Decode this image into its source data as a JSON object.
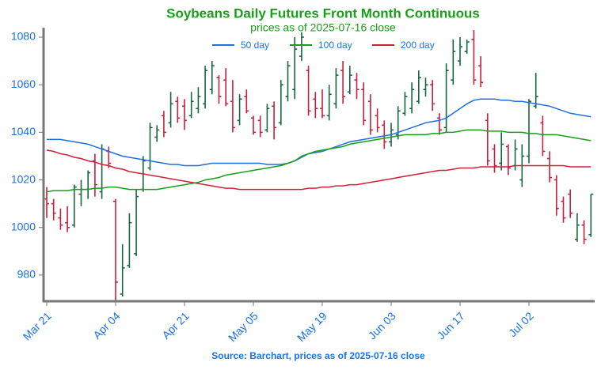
{
  "chart_data": {
    "type": "ohlc",
    "title": "Soybeans Daily Futures Front Month Continuous",
    "subtitle": "prices as of 2025-07-16 close",
    "source": "Source: Barchart, prices as of 2025-07-16 close",
    "categories": [
      "Mar 21",
      null,
      null,
      null,
      null,
      null,
      null,
      null,
      null,
      null,
      "Apr 04",
      null,
      null,
      null,
      null,
      null,
      null,
      null,
      null,
      null,
      "Apr 21",
      null,
      null,
      null,
      null,
      null,
      null,
      null,
      null,
      null,
      "May 05",
      null,
      null,
      null,
      null,
      null,
      null,
      null,
      null,
      null,
      "May 19",
      null,
      null,
      null,
      null,
      null,
      null,
      null,
      null,
      null,
      "Jun 03",
      null,
      null,
      null,
      null,
      null,
      null,
      null,
      null,
      null,
      "Jun 17",
      null,
      null,
      null,
      null,
      null,
      null,
      null,
      null,
      null,
      "Jul 02",
      null,
      null,
      null,
      null,
      null,
      null,
      null,
      null,
      null
    ],
    "open": [
      1012,
      1010,
      1004,
      1002,
      1001,
      1014,
      1016,
      1028,
      1015,
      1032,
      1011,
      972,
      984,
      989,
      1016,
      1025,
      1038,
      1047,
      1044,
      1053,
      1051,
      1047,
      1050,
      1052,
      1058,
      1063,
      1062,
      1053,
      1045,
      1055,
      1046,
      1045,
      1041,
      1051,
      1044,
      1055,
      1058,
      1072,
      1066,
      1054,
      1050,
      1047,
      1052,
      1066,
      1057,
      1062,
      1058,
      1053,
      1047,
      1043,
      1036,
      1039,
      1048,
      1050,
      1053,
      1058,
      1060,
      1046,
      1042,
      1062,
      1070,
      1074,
      1079,
      1068,
      1045,
      1033,
      1027,
      1034,
      1026,
      1020,
      1030,
      1051,
      1044,
      1029,
      1020,
      1011,
      1014,
      995,
      1001,
      997
    ],
    "high": [
      1017,
      1012,
      1008,
      1009,
      1018,
      1020,
      1024,
      1031,
      1035,
      1034,
      1012,
      993,
      1006,
      1016,
      1030,
      1044,
      1043,
      1049,
      1057,
      1055,
      1054,
      1057,
      1059,
      1068,
      1070,
      1064,
      1067,
      1062,
      1056,
      1058,
      1047,
      1047,
      1052,
      1053,
      1062,
      1070,
      1080,
      1082,
      1068,
      1057,
      1058,
      1060,
      1067,
      1070,
      1068,
      1065,
      1061,
      1056,
      1050,
      1045,
      1044,
      1051,
      1057,
      1061,
      1066,
      1063,
      1062,
      1048,
      1069,
      1079,
      1080,
      1079,
      1083,
      1072,
      1048,
      1035,
      1040,
      1035,
      1037,
      1035,
      1054,
      1065,
      1047,
      1032,
      1022,
      1013,
      1016,
      1006,
      1003,
      1014
    ],
    "low": [
      1004,
      1003,
      999,
      998,
      1000,
      1009,
      1012,
      1013,
      1012,
      1025,
      969,
      971,
      983,
      988,
      1015,
      1024,
      1036,
      1038,
      1042,
      1044,
      1041,
      1046,
      1048,
      1050,
      1056,
      1052,
      1051,
      1040,
      1043,
      1048,
      1039,
      1038,
      1040,
      1037,
      1043,
      1053,
      1054,
      1070,
      1047,
      1046,
      1046,
      1045,
      1050,
      1052,
      1056,
      1054,
      1043,
      1039,
      1040,
      1033,
      1034,
      1037,
      1047,
      1048,
      1052,
      1055,
      1049,
      1039,
      1040,
      1060,
      1068,
      1073,
      1060,
      1059,
      1026,
      1023,
      1024,
      1022,
      1024,
      1017,
      1027,
      1050,
      1030,
      1019,
      1005,
      1002,
      1004,
      994,
      993,
      996
    ],
    "close": [
      1010,
      1006,
      1001,
      1000,
      1017,
      1016,
      1023,
      1018,
      1033,
      1027,
      977,
      983,
      1002,
      1013,
      1028,
      1042,
      1041,
      1040,
      1052,
      1046,
      1045,
      1053,
      1055,
      1066,
      1068,
      1055,
      1052,
      1042,
      1054,
      1049,
      1040,
      1040,
      1050,
      1042,
      1060,
      1068,
      1075,
      1080,
      1049,
      1050,
      1047,
      1056,
      1064,
      1055,
      1064,
      1058,
      1045,
      1041,
      1042,
      1036,
      1041,
      1049,
      1055,
      1058,
      1063,
      1060,
      1052,
      1041,
      1066,
      1074,
      1076,
      1078,
      1062,
      1061,
      1028,
      1026,
      1035,
      1025,
      1033,
      1030,
      1053,
      1055,
      1032,
      1021,
      1008,
      1004,
      1006,
      1001,
      995,
      1014
    ],
    "up_color": "#17663f",
    "down_color": "#c4223d",
    "series": [
      {
        "name": "50 day",
        "color": "#1f6fe0",
        "values": [
          1037,
          1037,
          1037,
          1036.5,
          1036,
          1035.5,
          1035,
          1034,
          1033,
          1032,
          1031,
          1030,
          1029.5,
          1029,
          1028.5,
          1028,
          1027.5,
          1027,
          1026.5,
          1026.5,
          1026,
          1026,
          1026,
          1026.5,
          1027,
          1027,
          1027,
          1027,
          1027,
          1027,
          1027,
          1027,
          1026.5,
          1026.5,
          1026.5,
          1027,
          1028,
          1029.5,
          1031,
          1031.5,
          1032,
          1033,
          1034,
          1035,
          1036,
          1036.5,
          1037,
          1037.5,
          1038,
          1038.5,
          1039,
          1040,
          1041,
          1042,
          1043,
          1044,
          1044.5,
          1045,
          1046,
          1048,
          1050,
          1052,
          1053.5,
          1054,
          1054,
          1054,
          1053.5,
          1053.5,
          1053,
          1053,
          1052.5,
          1052,
          1051.5,
          1051,
          1050,
          1049,
          1048,
          1047.5,
          1047,
          1046.5
        ]
      },
      {
        "name": "100 day",
        "color": "#1a9e1a",
        "values": [
          1015,
          1015.5,
          1015.5,
          1015.5,
          1016,
          1016,
          1016,
          1016.5,
          1016.5,
          1017,
          1017,
          1016.5,
          1016,
          1016,
          1016,
          1016,
          1016,
          1016.5,
          1017,
          1017.5,
          1018,
          1018.5,
          1019,
          1020,
          1020.5,
          1021,
          1022,
          1022.5,
          1023,
          1023.5,
          1024,
          1024.5,
          1025,
          1025.5,
          1026,
          1027,
          1028,
          1030,
          1031,
          1032,
          1032.5,
          1033,
          1033.5,
          1034,
          1035,
          1035.5,
          1036,
          1036.5,
          1037,
          1037.5,
          1038,
          1038.5,
          1039,
          1039,
          1039,
          1039,
          1039.5,
          1039.5,
          1040,
          1040,
          1040.5,
          1041,
          1041,
          1041,
          1040.5,
          1040.5,
          1040.5,
          1040,
          1040,
          1040,
          1039.5,
          1039.5,
          1039,
          1039,
          1039,
          1038.5,
          1038,
          1037.5,
          1037,
          1036.5
        ]
      },
      {
        "name": "200 day",
        "color": "#d1203a",
        "values": [
          1032.5,
          1032,
          1031,
          1030.5,
          1029.5,
          1029,
          1028,
          1027.5,
          1026.5,
          1026,
          1025,
          1024.5,
          1023.5,
          1023,
          1022.5,
          1022,
          1021.5,
          1021,
          1020.5,
          1020,
          1019.5,
          1019,
          1018.5,
          1018,
          1017.5,
          1017,
          1016.5,
          1016.5,
          1016,
          1016,
          1016,
          1016,
          1016,
          1016,
          1016,
          1016,
          1016,
          1016,
          1016.5,
          1016.5,
          1017,
          1017,
          1017.5,
          1017.5,
          1018,
          1018,
          1018.5,
          1019,
          1019.5,
          1020,
          1020.5,
          1021,
          1021.5,
          1022,
          1022.5,
          1023,
          1023.5,
          1024,
          1024,
          1024.5,
          1025,
          1025,
          1025,
          1025.5,
          1025.5,
          1025.5,
          1025.5,
          1025.5,
          1026,
          1026,
          1026,
          1026,
          1026,
          1026,
          1026,
          1026,
          1025.5,
          1025.5,
          1025.5,
          1025.5
        ]
      }
    ],
    "ylim": [
      969,
      1084
    ],
    "yticks": [
      980,
      1000,
      1020,
      1040,
      1060,
      1080
    ],
    "title_color": "#1a9e1a",
    "label_color": "#1a73e8"
  }
}
